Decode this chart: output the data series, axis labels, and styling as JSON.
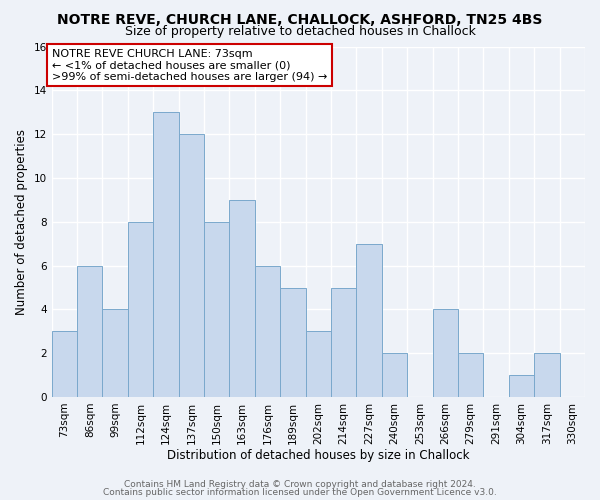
{
  "title": "NOTRE REVE, CHURCH LANE, CHALLOCK, ASHFORD, TN25 4BS",
  "subtitle": "Size of property relative to detached houses in Challock",
  "xlabel": "Distribution of detached houses by size in Challock",
  "ylabel": "Number of detached properties",
  "bar_color": "#c8d8ed",
  "bar_edge_color": "#7aa8cc",
  "categories": [
    "73sqm",
    "86sqm",
    "99sqm",
    "112sqm",
    "124sqm",
    "137sqm",
    "150sqm",
    "163sqm",
    "176sqm",
    "189sqm",
    "202sqm",
    "214sqm",
    "227sqm",
    "240sqm",
    "253sqm",
    "266sqm",
    "279sqm",
    "291sqm",
    "304sqm",
    "317sqm",
    "330sqm"
  ],
  "values": [
    3,
    6,
    4,
    8,
    13,
    12,
    8,
    9,
    6,
    5,
    3,
    5,
    7,
    2,
    0,
    4,
    2,
    0,
    1,
    2,
    0
  ],
  "ylim": [
    0,
    16
  ],
  "yticks": [
    0,
    2,
    4,
    6,
    8,
    10,
    12,
    14,
    16
  ],
  "annotation_line1": "NOTRE REVE CHURCH LANE: 73sqm",
  "annotation_line2": "← <1% of detached houses are smaller (0)",
  "annotation_line3": ">99% of semi-detached houses are larger (94) →",
  "annotation_box_color": "#ffffff",
  "annotation_box_edge_color": "#cc0000",
  "footer1": "Contains HM Land Registry data © Crown copyright and database right 2024.",
  "footer2": "Contains public sector information licensed under the Open Government Licence v3.0.",
  "background_color": "#eef2f8",
  "grid_color": "#ffffff",
  "title_fontsize": 10,
  "subtitle_fontsize": 9,
  "axis_label_fontsize": 8.5,
  "tick_fontsize": 7.5,
  "annotation_fontsize": 8,
  "footer_fontsize": 6.5
}
